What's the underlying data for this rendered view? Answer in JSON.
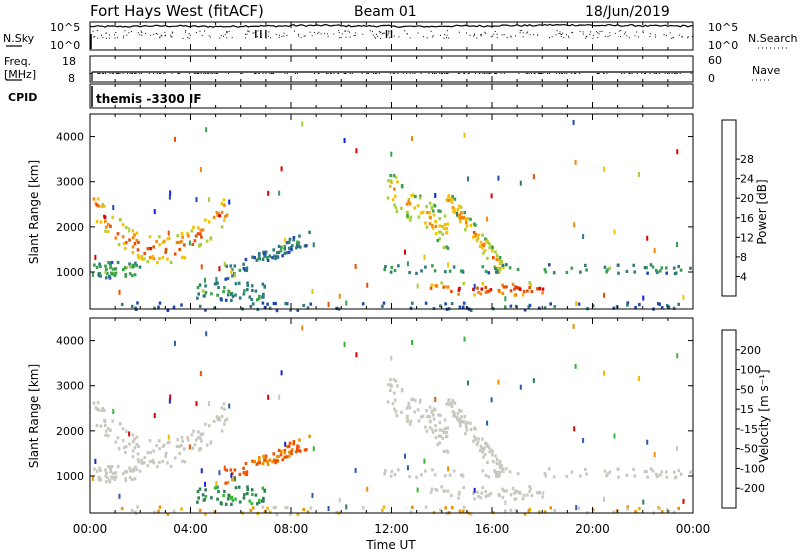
{
  "header": {
    "title": "Fort Hays West (fitACF)",
    "beam": "Beam 01",
    "date": "18/Jun/2019"
  },
  "strips": {
    "nsky": {
      "label": "N.Sky",
      "ticks": [
        "10^5",
        "10^0"
      ],
      "right_ticks": [
        "10^5",
        "10^0"
      ],
      "right_label": "N.Search"
    },
    "freq": {
      "label_lines": [
        "Freq.",
        "[MHz]"
      ],
      "ticks": [
        "18",
        "8"
      ],
      "right_ticks": [
        "60",
        "0"
      ],
      "right_label": "Nave"
    },
    "cpid": {
      "label": "CPID",
      "value": "themis -3300 IF"
    }
  },
  "panels": {
    "y_label": "Slant Range [km]",
    "y_ticks": [
      "1000",
      "2000",
      "3000",
      "4000"
    ],
    "x_label": "Time UT",
    "x_ticks": [
      "00:00",
      "04:00",
      "08:00",
      "12:00",
      "16:00",
      "20:00",
      "00:00"
    ]
  },
  "power_scale": {
    "label": "Power [dB]",
    "ticks": [
      "4",
      "8",
      "12",
      "16",
      "20",
      "24",
      "28"
    ],
    "colors": [
      "#0a1ee6",
      "#2146b4",
      "#2e7a7a",
      "#36a04a",
      "#a6cf3a",
      "#f5c000",
      "#f5860a",
      "#e84d00",
      "#dd0000"
    ]
  },
  "velocity_scale": {
    "label": "Velocity [m s⁻¹]",
    "ticks": [
      "200",
      "100",
      "50",
      "15",
      "-15",
      "-50",
      "-100",
      "-200"
    ],
    "colors": [
      "#1a22d0",
      "#2c5aa8",
      "#2e7e55",
      "#35b835",
      "#c8c8c0",
      "#f1b400",
      "#f09000",
      "#f05000",
      "#e00000"
    ]
  },
  "chart_data": [
    {
      "type": "line",
      "title": "N.Sky / N.Search",
      "x_range": [
        "00:00",
        "24:00"
      ],
      "description_series": [
        {
          "name": "N.Sky",
          "values_approx_log10": [
            4.5,
            4.6,
            4.5,
            4.6,
            4.7,
            4.6,
            4.5,
            4.6,
            4.7,
            4.8,
            4.7,
            4.6,
            4.7
          ]
        }
      ]
    },
    {
      "type": "line",
      "title": "Freq. / Nave",
      "x_range": [
        "00:00",
        "24:00"
      ],
      "series": [
        {
          "name": "Freq.",
          "values": [
            10.3,
            10.2,
            10.2,
            10.2,
            10.2,
            10.2,
            10.2,
            10.2,
            10.2,
            10.2,
            10.2,
            10.2,
            10.2
          ]
        }
      ]
    },
    {
      "type": "heatmap",
      "title": "Power",
      "x_range": [
        "00:00",
        "24:00"
      ],
      "y_range_km": [
        180,
        4500
      ],
      "color_range_dB": [
        0,
        30
      ],
      "blobs": [
        {
          "t0": 0.1,
          "t1": 5.5,
          "r0": 1200,
          "r1": 2600,
          "peak_db": 26
        },
        {
          "t0": 0.1,
          "t1": 2.0,
          "r0": 900,
          "r1": 1250,
          "peak_db": 14
        },
        {
          "t0": 4.2,
          "t1": 7.0,
          "r0": 400,
          "r1": 800,
          "peak_db": 12
        },
        {
          "t0": 5.3,
          "t1": 8.7,
          "r0": 1000,
          "r1": 1900,
          "peak_db": 10
        },
        {
          "t0": 11.8,
          "t1": 14.2,
          "r0": 1700,
          "r1": 3300,
          "peak_db": 20
        },
        {
          "t0": 14.0,
          "t1": 16.5,
          "r0": 1000,
          "r1": 2800,
          "peak_db": 22
        },
        {
          "t0": 13.5,
          "t1": 18.0,
          "r0": 500,
          "r1": 800,
          "peak_db": 28
        },
        {
          "t0": 11.5,
          "t1": 24.0,
          "r0": 1000,
          "r1": 1200,
          "peak_db": 12
        },
        {
          "t0": 0.5,
          "t1": 24.0,
          "r0": 180,
          "r1": 350,
          "peak_db": 8
        }
      ]
    },
    {
      "type": "heatmap",
      "title": "Velocity",
      "x_range": [
        "00:00",
        "24:00"
      ],
      "y_range_km": [
        180,
        4500
      ],
      "color_range_m_s": [
        -200,
        200
      ],
      "notes_observed": [
        "grey near-zero velocities dominant",
        "orange negative velocities near 05:30-08:30, 1000-1900 km",
        "green positive velocities near 04:30-06:30, 500-800 km"
      ]
    }
  ]
}
